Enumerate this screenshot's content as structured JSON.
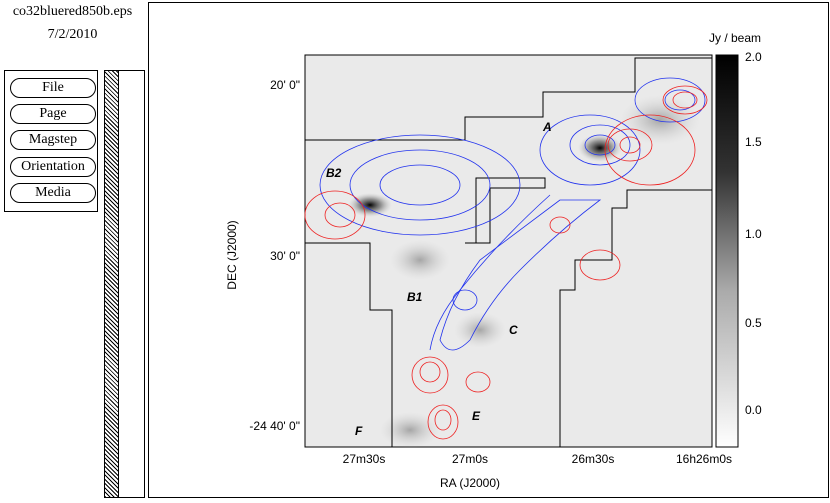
{
  "sidebar": {
    "filename": "co32bluered850b.eps",
    "date": "7/2/2010",
    "menu": [
      "File",
      "Page",
      "Magstep",
      "Orientation",
      "Media"
    ]
  },
  "figure": {
    "x_axis_label": "RA (J2000)",
    "y_axis_label": "DEC (J2000)",
    "xticks": [
      "27m30s",
      "27m0s",
      "26m30s",
      "16h26m0s"
    ],
    "yticks": [
      "20' 0\"",
      "30' 0\"",
      "-24 40' 0\""
    ],
    "colorbar_label": "Jy / beam",
    "colorbar_ticks": [
      "2.0",
      "1.5",
      "1.0",
      "0.5",
      "0.0"
    ],
    "regions": [
      "A",
      "B2",
      "B1",
      "C",
      "E",
      "F"
    ]
  }
}
